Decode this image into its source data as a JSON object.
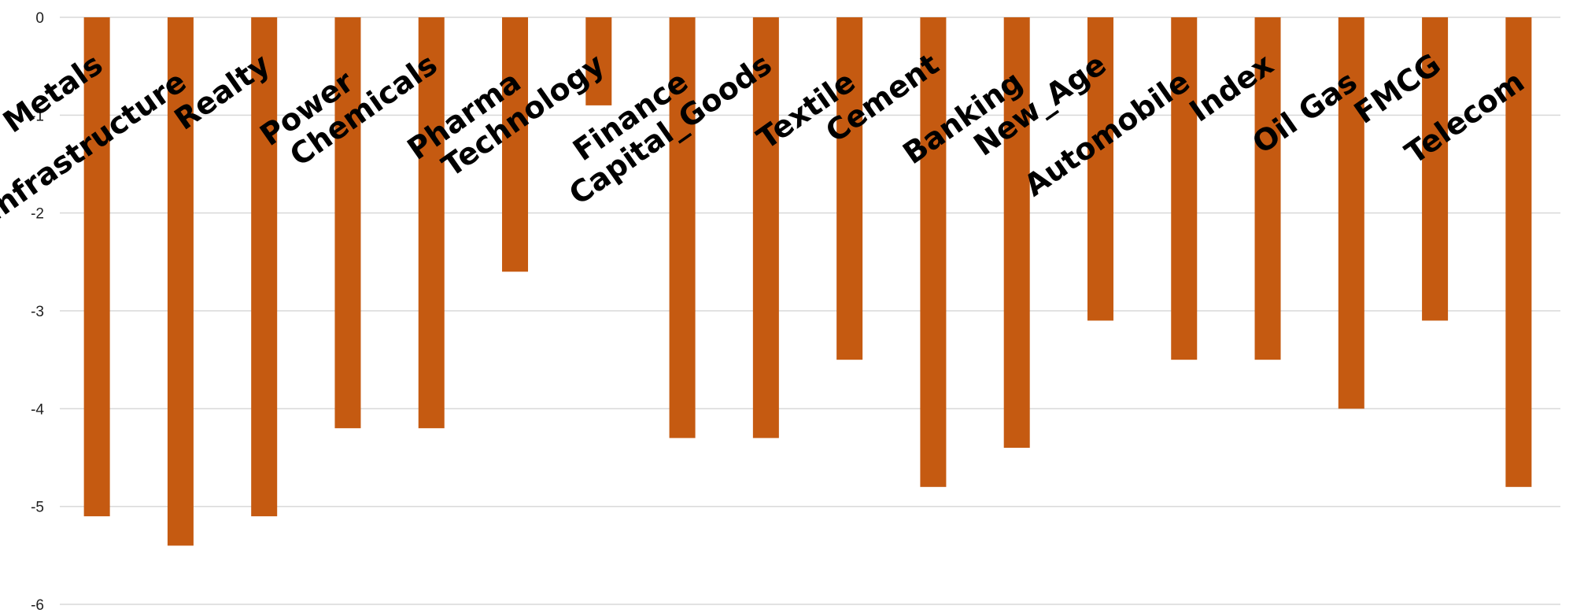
{
  "chart_data": {
    "type": "bar",
    "title": "",
    "xlabel": "",
    "ylabel": "",
    "categories": [
      "Metals",
      "Infrastructure",
      "Realty",
      "Power",
      "Chemicals",
      "Pharma",
      "Technology",
      "Finance",
      "Capital_Goods",
      "Textile",
      "Cement",
      "Banking",
      "New_Age",
      "Automobile",
      "Index",
      "Oil Gas",
      "FMCG",
      "Telecom"
    ],
    "values": [
      -5.1,
      -5.4,
      -5.1,
      -4.2,
      -4.2,
      -2.6,
      -0.9,
      -4.3,
      -4.3,
      -3.5,
      -4.8,
      -4.4,
      -3.1,
      -3.5,
      -3.5,
      -4.0,
      -3.1,
      -4.8
    ],
    "ylim": [
      -6,
      0
    ],
    "yticks": [
      "0",
      "-1",
      "-2",
      "-3",
      "-4",
      "-5",
      "-6"
    ],
    "grid": true,
    "legend": "none",
    "bar_color": "#c55a11"
  }
}
